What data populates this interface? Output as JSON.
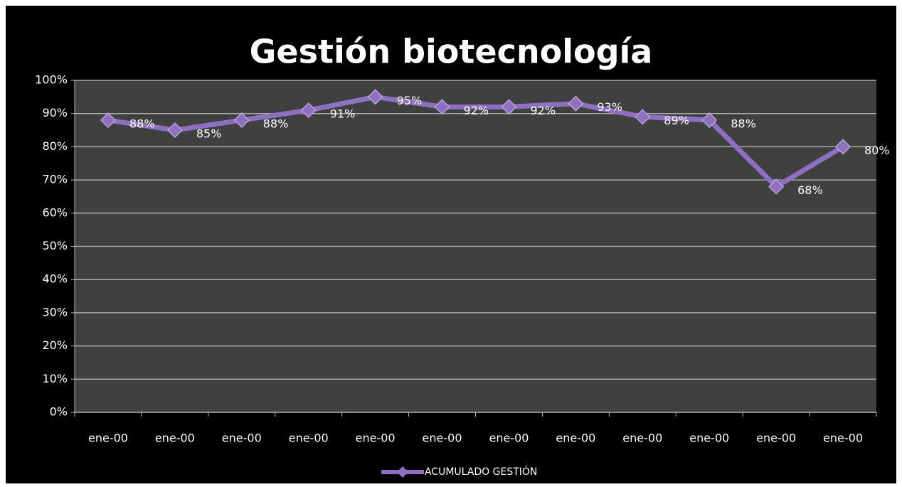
{
  "chart_data": {
    "type": "line",
    "title": "Gestión biotecnología",
    "categories": [
      "ene-00",
      "ene-00",
      "ene-00",
      "ene-00",
      "ene-00",
      "ene-00",
      "ene-00",
      "ene-00",
      "ene-00",
      "ene-00",
      "ene-00",
      "ene-00"
    ],
    "series": [
      {
        "name": "ACUMULADO GESTIÓN",
        "color": "#8e6fc0",
        "values": [
          88,
          85,
          88,
          91,
          95,
          92,
          92,
          93,
          89,
          88,
          68,
          80
        ],
        "value_labels": [
          "88%",
          "85%",
          "88%",
          "91%",
          "95%",
          "92%",
          "92%",
          "93%",
          "89%",
          "88%",
          "68%",
          "80%"
        ]
      }
    ],
    "ylim": [
      0,
      100
    ],
    "yticks": [
      {
        "value": 0,
        "label": "0%"
      },
      {
        "value": 10,
        "label": "10%"
      },
      {
        "value": 20,
        "label": "20%"
      },
      {
        "value": 30,
        "label": "30%"
      },
      {
        "value": 40,
        "label": "40%"
      },
      {
        "value": 50,
        "label": "50%"
      },
      {
        "value": 60,
        "label": "60%"
      },
      {
        "value": 70,
        "label": "70%"
      },
      {
        "value": 80,
        "label": "80%"
      },
      {
        "value": 90,
        "label": "90%"
      },
      {
        "value": 100,
        "label": "100%"
      }
    ],
    "grid": true,
    "legend": "bottom"
  }
}
